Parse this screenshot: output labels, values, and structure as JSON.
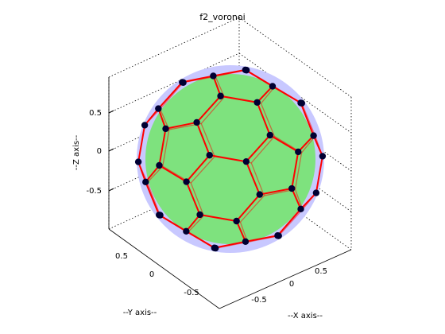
{
  "figure": {
    "title": "f2_voronoi"
  },
  "chart_data": {
    "type": "scatter",
    "title": "f2_voronoi",
    "xlabel": "--X axis--",
    "ylabel": "--Y axis--",
    "zlabel": "--Z axis--",
    "x_ticks": [
      "-0.5",
      "0",
      "0.5"
    ],
    "y_ticks": [
      "0.5",
      "0",
      "-0.5"
    ],
    "z_ticks": [
      "0.5",
      "0",
      "-0.5"
    ],
    "xlim": [
      -0.8,
      0.8
    ],
    "ylim": [
      -0.8,
      0.8
    ],
    "zlim": [
      -0.8,
      0.8
    ],
    "grid": true,
    "box": "dotted back planes",
    "description_note": "",
    "sphere_color": "#c8c8ff",
    "voronoi_face_color": "#7ee27e",
    "edge_color": "#ff0000",
    "vertex_color": "#000033",
    "vertices": 60
  }
}
